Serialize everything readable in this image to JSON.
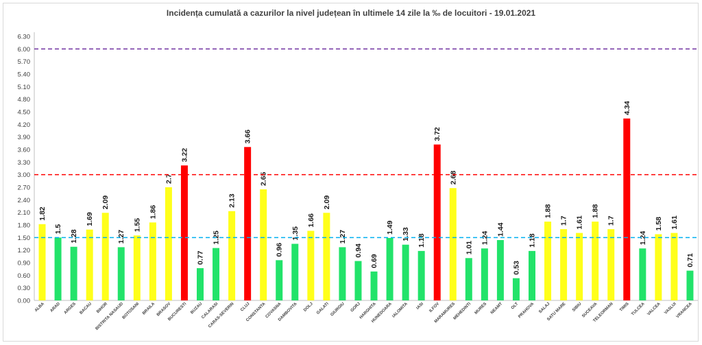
{
  "chart_data": {
    "type": "bar",
    "title": "Incidența cumulată a cazurilor la nivel județean în ultimele 14 zile la ‰ de locuitori - 19.01.2021",
    "xlabel": "",
    "ylabel": "",
    "ylim": [
      0,
      6.3
    ],
    "yticks": [
      "0.00",
      "0.30",
      "0.60",
      "0.90",
      "1.20",
      "1.50",
      "1.80",
      "2.10",
      "2.40",
      "2.70",
      "3.00",
      "3.30",
      "3.60",
      "3.90",
      "4.20",
      "4.50",
      "4.80",
      "5.10",
      "5.40",
      "5.70",
      "6.00",
      "6.30"
    ],
    "grid": false,
    "categories": [
      "ALBA",
      "ARAD",
      "ARGES",
      "BACAU",
      "BIHOR",
      "BISTRITA NASAUD",
      "BOTOSANI",
      "BRAILA",
      "BRASOV",
      "BUCURESTI",
      "BUZAU",
      "CALARASI",
      "CARAS-SEVERIN",
      "CLUJ",
      "CONSTANTA",
      "COVASNA",
      "DAMBOVITA",
      "DOLJ",
      "GALATI",
      "GIURGIU",
      "GORJ",
      "HARGHITA",
      "HUNEDOARA",
      "IALOMITA",
      "IASI",
      "ILFOV",
      "MARAMURES",
      "MEHEDINTI",
      "MURES",
      "NEAMT",
      "OLT",
      "PRAHOVA",
      "SALAJ",
      "SATU MARE",
      "SIBIU",
      "SUCEAVA",
      "TELEORMAN",
      "TIMIS",
      "TULCEA",
      "VALCEA",
      "VASLUI",
      "VRANCEA"
    ],
    "values": [
      1.82,
      1.5,
      1.28,
      1.69,
      2.09,
      1.27,
      1.55,
      1.86,
      2.7,
      3.22,
      0.77,
      1.25,
      2.13,
      3.66,
      2.65,
      0.96,
      1.35,
      1.66,
      2.09,
      1.27,
      0.94,
      0.69,
      1.49,
      1.33,
      1.18,
      3.72,
      2.68,
      1.01,
      1.24,
      1.44,
      0.53,
      1.18,
      1.88,
      1.7,
      1.61,
      1.88,
      1.7,
      4.34,
      1.24,
      1.58,
      1.61,
      0.71
    ],
    "value_labels": [
      "1.82",
      "1.5",
      "1.28",
      "1.69",
      "2.09",
      "1.27",
      "1.55",
      "1.86",
      "2.7",
      "3.22",
      "0.77",
      "1.25",
      "2.13",
      "3.66",
      "2.65",
      "0.96",
      "1.35",
      "1.66",
      "2.09",
      "1.27",
      "0.94",
      "0.69",
      "1.49",
      "1.33",
      "1.18",
      "3.72",
      "2.68",
      "1.01",
      "1.24",
      "1.44",
      "0.53",
      "1.18",
      "1.88",
      "1.7",
      "1.61",
      "1.88",
      "1.7",
      "4.34",
      "1.24",
      "1.58",
      "1.61",
      "0.71"
    ],
    "thresholds": [
      {
        "value": 1.5,
        "color": "#00b0f0",
        "style": "dashed"
      },
      {
        "value": 3.0,
        "color": "#ff0000",
        "style": "dashed"
      },
      {
        "value": 6.0,
        "color": "#7030a0",
        "style": "dashed"
      }
    ],
    "colors": {
      "green": "#22e36a",
      "yellow": "#ffff1a",
      "red": "#ff0000",
      "axis": "#bfbfbf"
    }
  }
}
